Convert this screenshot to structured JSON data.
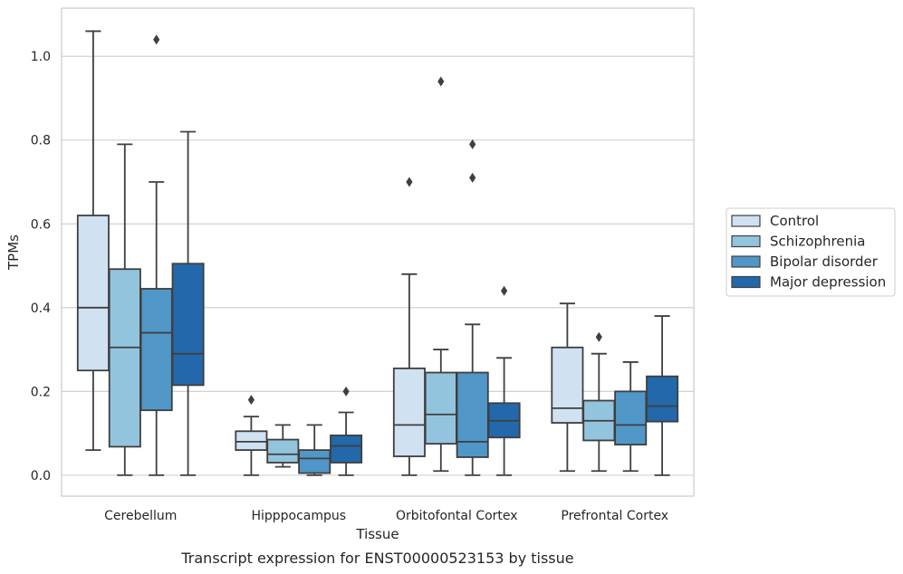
{
  "caption": "Transcript expression for ENST00000523153 by tissue",
  "chart_data": {
    "type": "boxplot",
    "xlabel": "Tissue",
    "ylabel": "TPMs",
    "ylim": [
      -0.05,
      1.115
    ],
    "yticks": [
      0.0,
      0.2,
      0.4,
      0.6,
      0.8,
      1.0
    ],
    "ytick_labels": [
      "0.0",
      "0.2",
      "0.4",
      "0.6",
      "0.8",
      "1.0"
    ],
    "grid": "horizontal",
    "legend_position": "right",
    "categories": [
      "Cerebellum",
      "Hipppocampus",
      "Orbitofontal Cortex",
      "Prefrontal Cortex"
    ],
    "series": [
      {
        "name": "Control",
        "color": "#d0e1f1",
        "boxes": [
          {
            "whisker_low": 0.06,
            "q1": 0.25,
            "median": 0.4,
            "q3": 0.62,
            "whisker_high": 1.06,
            "outliers": []
          },
          {
            "whisker_low": 0.0,
            "q1": 0.06,
            "median": 0.08,
            "q3": 0.105,
            "whisker_high": 0.14,
            "outliers": [
              0.18
            ]
          },
          {
            "whisker_low": 0.0,
            "q1": 0.045,
            "median": 0.12,
            "q3": 0.255,
            "whisker_high": 0.48,
            "outliers": [
              0.7
            ]
          },
          {
            "whisker_low": 0.01,
            "q1": 0.125,
            "median": 0.16,
            "q3": 0.305,
            "whisker_high": 0.41,
            "outliers": []
          }
        ]
      },
      {
        "name": "Schizophrenia",
        "color": "#93c4de",
        "boxes": [
          {
            "whisker_low": 0.0,
            "q1": 0.068,
            "median": 0.305,
            "q3": 0.492,
            "whisker_high": 0.79,
            "outliers": []
          },
          {
            "whisker_low": 0.02,
            "q1": 0.03,
            "median": 0.05,
            "q3": 0.085,
            "whisker_high": 0.12,
            "outliers": []
          },
          {
            "whisker_low": 0.01,
            "q1": 0.075,
            "median": 0.145,
            "q3": 0.245,
            "whisker_high": 0.3,
            "outliers": [
              0.94
            ]
          },
          {
            "whisker_low": 0.01,
            "q1": 0.083,
            "median": 0.13,
            "q3": 0.178,
            "whisker_high": 0.29,
            "outliers": [
              0.33
            ]
          }
        ]
      },
      {
        "name": "Bipolar disorder",
        "color": "#5097c8",
        "boxes": [
          {
            "whisker_low": 0.0,
            "q1": 0.155,
            "median": 0.34,
            "q3": 0.445,
            "whisker_high": 0.7,
            "outliers": [
              1.04
            ]
          },
          {
            "whisker_low": 0.0,
            "q1": 0.005,
            "median": 0.04,
            "q3": 0.06,
            "whisker_high": 0.12,
            "outliers": []
          },
          {
            "whisker_low": 0.0,
            "q1": 0.043,
            "median": 0.08,
            "q3": 0.245,
            "whisker_high": 0.36,
            "outliers": [
              0.71,
              0.79
            ]
          },
          {
            "whisker_low": 0.01,
            "q1": 0.073,
            "median": 0.12,
            "q3": 0.2,
            "whisker_high": 0.27,
            "outliers": []
          }
        ]
      },
      {
        "name": "Major depression",
        "color": "#2368aa",
        "boxes": [
          {
            "whisker_low": 0.0,
            "q1": 0.215,
            "median": 0.29,
            "q3": 0.505,
            "whisker_high": 0.82,
            "outliers": []
          },
          {
            "whisker_low": 0.0,
            "q1": 0.03,
            "median": 0.07,
            "q3": 0.095,
            "whisker_high": 0.15,
            "outliers": [
              0.2
            ]
          },
          {
            "whisker_low": 0.0,
            "q1": 0.09,
            "median": 0.13,
            "q3": 0.172,
            "whisker_high": 0.28,
            "outliers": [
              0.44
            ]
          },
          {
            "whisker_low": 0.0,
            "q1": 0.128,
            "median": 0.165,
            "q3": 0.236,
            "whisker_high": 0.38,
            "outliers": []
          }
        ]
      }
    ]
  }
}
